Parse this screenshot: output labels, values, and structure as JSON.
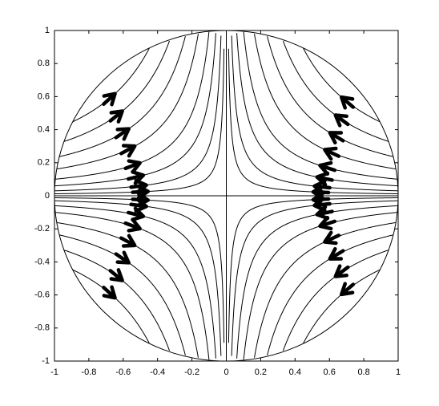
{
  "chart_data": {
    "type": "streamline",
    "xlim": [
      -1,
      1
    ],
    "ylim": [
      -1,
      1
    ],
    "xticks": [
      -1,
      -0.8,
      -0.6,
      -0.4,
      -0.2,
      0,
      0.2,
      0.4,
      0.6,
      0.8,
      1
    ],
    "yticks": [
      -1,
      -0.8,
      -0.6,
      -0.4,
      -0.2,
      0,
      0.2,
      0.4,
      0.6,
      0.8,
      1
    ],
    "grid": false,
    "color": "#000000"
  }
}
